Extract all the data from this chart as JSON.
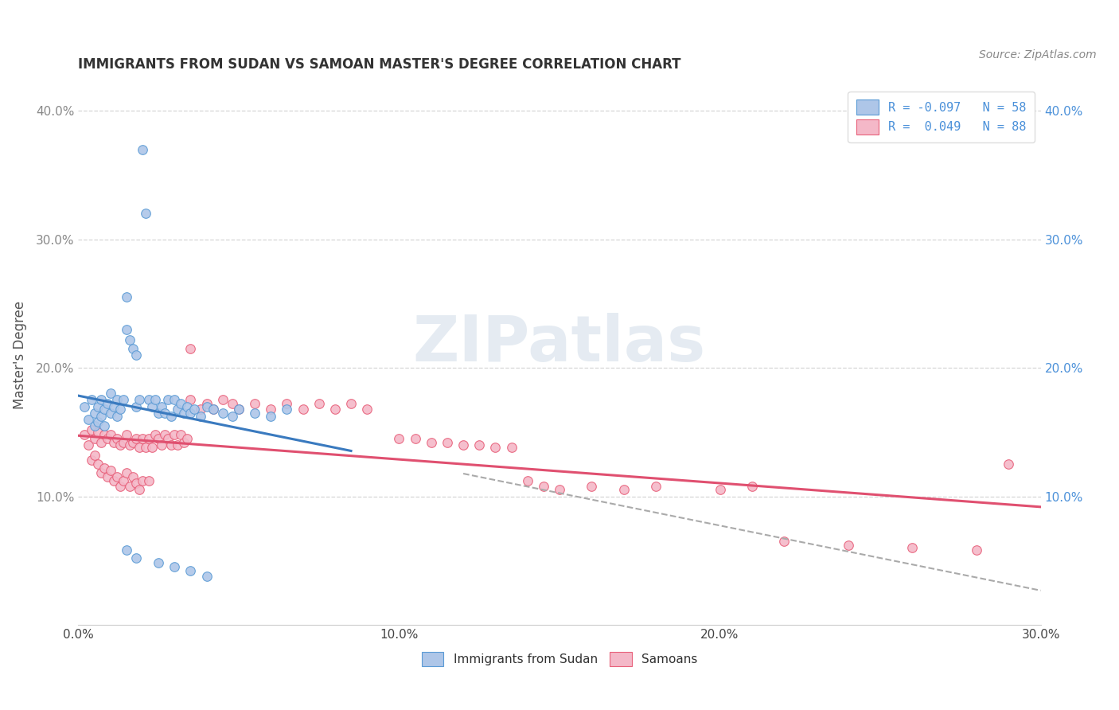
{
  "title": "IMMIGRANTS FROM SUDAN VS SAMOAN MASTER'S DEGREE CORRELATION CHART",
  "source_text": "Source: ZipAtlas.com",
  "ylabel": "Master's Degree",
  "xlim": [
    0.0,
    0.3
  ],
  "ylim": [
    0.0,
    0.42
  ],
  "xtick_vals": [
    0.0,
    0.1,
    0.2,
    0.3
  ],
  "xtick_labels": [
    "0.0%",
    "10.0%",
    "20.0%",
    "30.0%"
  ],
  "ytick_vals": [
    0.1,
    0.2,
    0.3,
    0.4
  ],
  "ytick_labels": [
    "10.0%",
    "20.0%",
    "30.0%",
    "40.0%"
  ],
  "legend_label_sudan": "R = -0.097   N = 58",
  "legend_label_samoan": "R =  0.049   N = 88",
  "bottom_legend_sudan": "Immigrants from Sudan",
  "bottom_legend_samoan": "Samoans",
  "sudan_color_fill": "#aec6e8",
  "sudan_color_edge": "#5b9bd5",
  "samoan_color_fill": "#f4b8c8",
  "samoan_color_edge": "#e8607a",
  "sudan_line_color": "#3a7abf",
  "samoan_line_color": "#e05070",
  "dash_line_color": "#aaaaaa",
  "grid_color": "#cccccc",
  "bg_color": "#ffffff",
  "title_fontsize": 12,
  "watermark_text": "ZIPatlas",
  "sudan_scatter": [
    [
      0.002,
      0.17
    ],
    [
      0.003,
      0.16
    ],
    [
      0.004,
      0.175
    ],
    [
      0.005,
      0.165
    ],
    [
      0.005,
      0.155
    ],
    [
      0.006,
      0.17
    ],
    [
      0.006,
      0.158
    ],
    [
      0.007,
      0.175
    ],
    [
      0.007,
      0.162
    ],
    [
      0.008,
      0.168
    ],
    [
      0.008,
      0.155
    ],
    [
      0.009,
      0.172
    ],
    [
      0.01,
      0.18
    ],
    [
      0.01,
      0.165
    ],
    [
      0.011,
      0.17
    ],
    [
      0.012,
      0.175
    ],
    [
      0.012,
      0.162
    ],
    [
      0.013,
      0.168
    ],
    [
      0.014,
      0.175
    ],
    [
      0.015,
      0.255
    ],
    [
      0.015,
      0.23
    ],
    [
      0.016,
      0.222
    ],
    [
      0.017,
      0.215
    ],
    [
      0.018,
      0.21
    ],
    [
      0.018,
      0.17
    ],
    [
      0.019,
      0.175
    ],
    [
      0.02,
      0.37
    ],
    [
      0.021,
      0.32
    ],
    [
      0.022,
      0.175
    ],
    [
      0.023,
      0.17
    ],
    [
      0.024,
      0.175
    ],
    [
      0.025,
      0.165
    ],
    [
      0.026,
      0.17
    ],
    [
      0.027,
      0.165
    ],
    [
      0.028,
      0.175
    ],
    [
      0.029,
      0.162
    ],
    [
      0.03,
      0.175
    ],
    [
      0.031,
      0.168
    ],
    [
      0.032,
      0.172
    ],
    [
      0.033,
      0.165
    ],
    [
      0.034,
      0.17
    ],
    [
      0.035,
      0.165
    ],
    [
      0.036,
      0.168
    ],
    [
      0.038,
      0.162
    ],
    [
      0.04,
      0.17
    ],
    [
      0.042,
      0.168
    ],
    [
      0.045,
      0.165
    ],
    [
      0.048,
      0.162
    ],
    [
      0.05,
      0.168
    ],
    [
      0.055,
      0.165
    ],
    [
      0.06,
      0.162
    ],
    [
      0.065,
      0.168
    ],
    [
      0.015,
      0.058
    ],
    [
      0.018,
      0.052
    ],
    [
      0.025,
      0.048
    ],
    [
      0.03,
      0.045
    ],
    [
      0.035,
      0.042
    ],
    [
      0.04,
      0.038
    ]
  ],
  "samoan_scatter": [
    [
      0.002,
      0.148
    ],
    [
      0.003,
      0.14
    ],
    [
      0.004,
      0.152
    ],
    [
      0.004,
      0.128
    ],
    [
      0.005,
      0.145
    ],
    [
      0.005,
      0.132
    ],
    [
      0.006,
      0.15
    ],
    [
      0.006,
      0.125
    ],
    [
      0.007,
      0.142
    ],
    [
      0.007,
      0.118
    ],
    [
      0.008,
      0.148
    ],
    [
      0.008,
      0.122
    ],
    [
      0.009,
      0.145
    ],
    [
      0.009,
      0.115
    ],
    [
      0.01,
      0.148
    ],
    [
      0.01,
      0.12
    ],
    [
      0.011,
      0.142
    ],
    [
      0.011,
      0.112
    ],
    [
      0.012,
      0.145
    ],
    [
      0.012,
      0.115
    ],
    [
      0.013,
      0.14
    ],
    [
      0.013,
      0.108
    ],
    [
      0.014,
      0.142
    ],
    [
      0.014,
      0.112
    ],
    [
      0.015,
      0.148
    ],
    [
      0.015,
      0.118
    ],
    [
      0.016,
      0.14
    ],
    [
      0.016,
      0.108
    ],
    [
      0.017,
      0.142
    ],
    [
      0.017,
      0.115
    ],
    [
      0.018,
      0.145
    ],
    [
      0.018,
      0.11
    ],
    [
      0.019,
      0.138
    ],
    [
      0.019,
      0.105
    ],
    [
      0.02,
      0.145
    ],
    [
      0.02,
      0.112
    ],
    [
      0.021,
      0.138
    ],
    [
      0.022,
      0.145
    ],
    [
      0.022,
      0.112
    ],
    [
      0.023,
      0.138
    ],
    [
      0.024,
      0.148
    ],
    [
      0.025,
      0.145
    ],
    [
      0.026,
      0.14
    ],
    [
      0.027,
      0.148
    ],
    [
      0.028,
      0.145
    ],
    [
      0.029,
      0.14
    ],
    [
      0.03,
      0.148
    ],
    [
      0.031,
      0.14
    ],
    [
      0.032,
      0.148
    ],
    [
      0.033,
      0.142
    ],
    [
      0.034,
      0.145
    ],
    [
      0.035,
      0.175
    ],
    [
      0.038,
      0.168
    ],
    [
      0.04,
      0.172
    ],
    [
      0.042,
      0.168
    ],
    [
      0.045,
      0.175
    ],
    [
      0.048,
      0.172
    ],
    [
      0.05,
      0.168
    ],
    [
      0.055,
      0.172
    ],
    [
      0.06,
      0.168
    ],
    [
      0.065,
      0.172
    ],
    [
      0.07,
      0.168
    ],
    [
      0.075,
      0.172
    ],
    [
      0.08,
      0.168
    ],
    [
      0.085,
      0.172
    ],
    [
      0.09,
      0.168
    ],
    [
      0.1,
      0.145
    ],
    [
      0.105,
      0.145
    ],
    [
      0.11,
      0.142
    ],
    [
      0.115,
      0.142
    ],
    [
      0.12,
      0.14
    ],
    [
      0.125,
      0.14
    ],
    [
      0.13,
      0.138
    ],
    [
      0.135,
      0.138
    ],
    [
      0.14,
      0.112
    ],
    [
      0.145,
      0.108
    ],
    [
      0.15,
      0.105
    ],
    [
      0.16,
      0.108
    ],
    [
      0.17,
      0.105
    ],
    [
      0.18,
      0.108
    ],
    [
      0.2,
      0.105
    ],
    [
      0.21,
      0.108
    ],
    [
      0.22,
      0.065
    ],
    [
      0.24,
      0.062
    ],
    [
      0.26,
      0.06
    ],
    [
      0.28,
      0.058
    ],
    [
      0.29,
      0.125
    ],
    [
      0.035,
      0.215
    ]
  ],
  "trendline_xlim_sudan": [
    0.0,
    0.08
  ],
  "trendline_xlim_samoan": [
    0.0,
    0.3
  ],
  "dash_xlim": [
    0.12,
    0.3
  ]
}
